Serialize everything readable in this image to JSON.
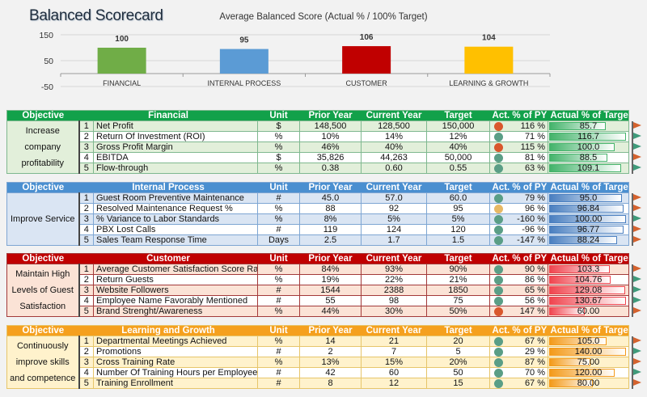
{
  "title": "Balanced Scorecard",
  "chart_data": {
    "type": "bar",
    "title": "Average Balanced Score (Actual % / 100% Target)",
    "categories": [
      "FINANCIAL",
      "INTERNAL PROCESS",
      "CUSTOMER",
      "LEARNING & GROWTH"
    ],
    "values": [
      100,
      95,
      106,
      104
    ],
    "data_labels": [
      "100",
      "95",
      "106",
      "104"
    ],
    "colors": [
      "#70ad47",
      "#5b9bd5",
      "#c00000",
      "#ffc000"
    ],
    "yticks": [
      150,
      50,
      -50
    ],
    "ylim": [
      -50,
      150
    ],
    "grid": true
  },
  "headers": {
    "objective": "Objective",
    "unit": "Unit",
    "prior": "Prior Year",
    "current": "Current Year",
    "target": "Target",
    "act_py": "Act. % of PY",
    "act_target": "Actual % of Target"
  },
  "colors": {
    "dot_green": "#5a9e86",
    "dot_orange": "#d9572c",
    "dot_yellow": "#e6b865",
    "flag_green": "#3f9a7a",
    "flag_orange": "#d4622e"
  },
  "sections": [
    {
      "name": "Financial",
      "objective": "Increase company profitability",
      "header_color": "#12a14a",
      "light": "#e2efda",
      "border": "#7fb88f",
      "bar_color": "#43b36a",
      "rows": [
        {
          "n": "1",
          "metric": "Net Profit",
          "unit": "$",
          "prior": "148,500",
          "current": "128,500",
          "target": "150,000",
          "act_py": "116 %",
          "dot": "orange",
          "actual": "85.7",
          "flag": "orange"
        },
        {
          "n": "2",
          "metric": "Return Of Investment (ROI)",
          "unit": "%",
          "prior": "10%",
          "current": "14%",
          "target": "12%",
          "act_py": "71 %",
          "dot": "green",
          "actual": "116.7",
          "flag": "green"
        },
        {
          "n": "3",
          "metric": "Gross Profit Margin",
          "unit": "%",
          "prior": "46%",
          "current": "40%",
          "target": "40%",
          "act_py": "115 %",
          "dot": "orange",
          "actual": "100.0",
          "flag": "green"
        },
        {
          "n": "4",
          "metric": "EBITDA",
          "unit": "$",
          "prior": "35,826",
          "current": "44,263",
          "target": "50,000",
          "act_py": "81 %",
          "dot": "green",
          "actual": "88.5",
          "flag": "orange"
        },
        {
          "n": "5",
          "metric": "Flow-through",
          "unit": "%",
          "prior": "0.38",
          "current": "0.60",
          "target": "0.55",
          "act_py": "63 %",
          "dot": "green",
          "actual": "109.1",
          "flag": "green"
        }
      ]
    },
    {
      "name": "Internal Process",
      "objective": "Improve Service",
      "header_color": "#4a8fd0",
      "light": "#dae5f3",
      "border": "#7ea6d3",
      "bar_color": "#4a7fc0",
      "rows": [
        {
          "n": "1",
          "metric": "Guest Room Preventive Maintenance",
          "unit": "#",
          "prior": "45.0",
          "current": "57.0",
          "target": "60.0",
          "act_py": "79 %",
          "dot": "green",
          "actual": "95.0",
          "flag": "orange"
        },
        {
          "n": "2",
          "metric": "Resolved Maintenance Request %",
          "unit": "%",
          "prior": "88",
          "current": "92",
          "target": "95",
          "act_py": "96 %",
          "dot": "yellow",
          "actual": "96.84",
          "flag": "orange"
        },
        {
          "n": "3",
          "metric": "% Variance to Labor Standards",
          "unit": "%",
          "prior": "8%",
          "current": "5%",
          "target": "5%",
          "act_py": "-160 %",
          "dot": "green",
          "actual": "100.00",
          "flag": "green"
        },
        {
          "n": "4",
          "metric": "PBX Lost Calls",
          "unit": "#",
          "prior": "119",
          "current": "124",
          "target": "120",
          "act_py": "-96 %",
          "dot": "green",
          "actual": "96.77",
          "flag": "orange"
        },
        {
          "n": "5",
          "metric": "Sales Team Response Time",
          "unit": "Days",
          "prior": "2.5",
          "current": "1.7",
          "target": "1.5",
          "act_py": "-147 %",
          "dot": "green",
          "actual": "88.24",
          "flag": "orange"
        }
      ]
    },
    {
      "name": "Customer",
      "objective": "Maintain High Levels of Guest Satisfaction",
      "header_color": "#c00000",
      "light": "#fbe3d6",
      "border": "#a33a3a",
      "bar_color": "#f0454f",
      "rows": [
        {
          "n": "1",
          "metric": "Average Customer Satisfaction Score Rate",
          "unit": "%",
          "prior": "84%",
          "current": "93%",
          "target": "90%",
          "act_py": "90 %",
          "dot": "green",
          "actual": "103.3",
          "flag": "orange"
        },
        {
          "n": "2",
          "metric": "Return Guests",
          "unit": "%",
          "prior": "19%",
          "current": "22%",
          "target": "21%",
          "act_py": "86 %",
          "dot": "green",
          "actual": "104.76",
          "flag": "green"
        },
        {
          "n": "3",
          "metric": "Website Followers",
          "unit": "#",
          "prior": "1544",
          "current": "2388",
          "target": "1850",
          "act_py": "65 %",
          "dot": "green",
          "actual": "129.08",
          "flag": "green"
        },
        {
          "n": "4",
          "metric": "Employee Name Favorably Mentioned",
          "unit": "#",
          "prior": "55",
          "current": "98",
          "target": "75",
          "act_py": "56 %",
          "dot": "green",
          "actual": "130.67",
          "flag": "green"
        },
        {
          "n": "5",
          "metric": "Brand Strenght/Awareness",
          "unit": "%",
          "prior": "44%",
          "current": "30%",
          "target": "50%",
          "act_py": "147 %",
          "dot": "orange",
          "actual": "60.00",
          "flag": "orange"
        }
      ]
    },
    {
      "name": "Learning and Growth",
      "objective": "Continuously improve skills and competence",
      "header_color": "#f5a01e",
      "light": "#fff2cc",
      "border": "#e6c56a",
      "bar_color": "#f39a1a",
      "rows": [
        {
          "n": "1",
          "metric": "Departmental Meetings Achieved",
          "unit": "%",
          "prior": "14",
          "current": "21",
          "target": "20",
          "act_py": "67 %",
          "dot": "green",
          "actual": "105.0",
          "flag": "orange"
        },
        {
          "n": "2",
          "metric": "Promotions",
          "unit": "#",
          "prior": "2",
          "current": "7",
          "target": "5",
          "act_py": "29 %",
          "dot": "green",
          "actual": "140.00",
          "flag": "green"
        },
        {
          "n": "3",
          "metric": "Cross Training Rate",
          "unit": "%",
          "prior": "13%",
          "current": "15%",
          "target": "20%",
          "act_py": "87 %",
          "dot": "green",
          "actual": "75.00",
          "flag": "orange"
        },
        {
          "n": "4",
          "metric": "Number Of Training Hours per Employee",
          "unit": "#",
          "prior": "42",
          "current": "60",
          "target": "50",
          "act_py": "70 %",
          "dot": "green",
          "actual": "120.00",
          "flag": "green"
        },
        {
          "n": "5",
          "metric": "Training Enrollment",
          "unit": "#",
          "prior": "8",
          "current": "12",
          "target": "15",
          "act_py": "67 %",
          "dot": "green",
          "actual": "80.00",
          "flag": "orange"
        }
      ]
    }
  ]
}
